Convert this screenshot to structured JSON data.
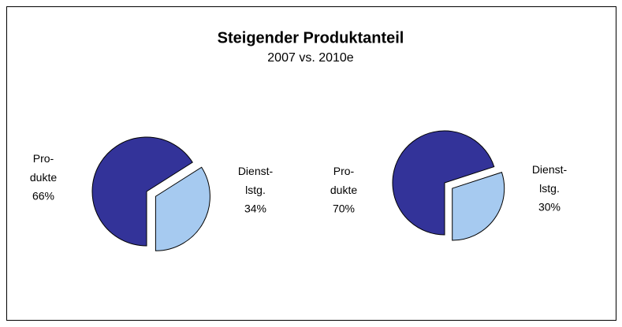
{
  "title": "Steigender Produktanteil",
  "subtitle": "2007 vs. 2010e",
  "chart_data": [
    {
      "type": "pie",
      "categories": [
        "Pro-dukte",
        "Dienst-lstg."
      ],
      "values": [
        66,
        34
      ],
      "value_labels": [
        "66%",
        "34%"
      ],
      "colors": [
        "#333399",
        "#a6caf0"
      ]
    },
    {
      "type": "pie",
      "categories": [
        "Pro-dukte",
        "Dienst-lstg."
      ],
      "values": [
        70,
        30
      ],
      "value_labels": [
        "70%",
        "30%"
      ],
      "colors": [
        "#333399",
        "#a6caf0"
      ]
    }
  ]
}
